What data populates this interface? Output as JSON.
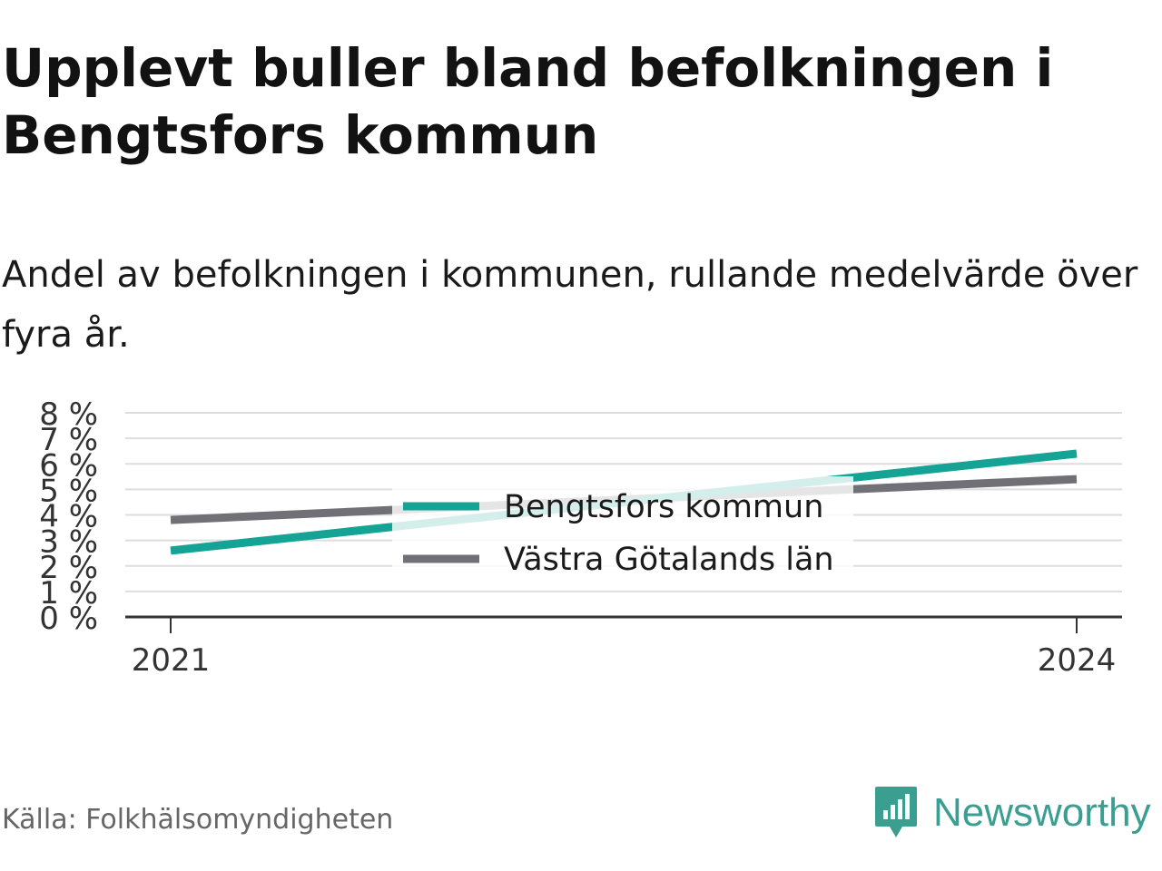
{
  "header": {
    "title": "Upplevt buller bland befolkningen i Bengtsfors kommun",
    "subtitle": "Andel av befolkningen i kommunen, rullande medelvärde över fyra år."
  },
  "footer": {
    "source": "Källa: Folkhälsomyndigheten",
    "brand": "Newsworthy",
    "brand_icon": "newsworthy-logo-icon",
    "brand_color": "#3a9e90"
  },
  "chart_data": {
    "type": "line",
    "x": [
      2021,
      2024
    ],
    "x_tick_labels": [
      "2021",
      "2024"
    ],
    "y_ticks": [
      0,
      1,
      2,
      3,
      4,
      5,
      6,
      7,
      8
    ],
    "y_tick_labels": [
      "0 %",
      "1 %",
      "2 %",
      "3 %",
      "4 %",
      "5 %",
      "6 %",
      "7 %",
      "8 %"
    ],
    "ylim": [
      0,
      8
    ],
    "grid": true,
    "legend_placement": "center",
    "series": [
      {
        "name": "Bengtsfors kommun",
        "values": [
          2.6,
          6.4
        ],
        "color": "#14a394"
      },
      {
        "name": "Västra Götalands län",
        "values": [
          3.8,
          5.4
        ],
        "color": "#717076"
      }
    ]
  }
}
